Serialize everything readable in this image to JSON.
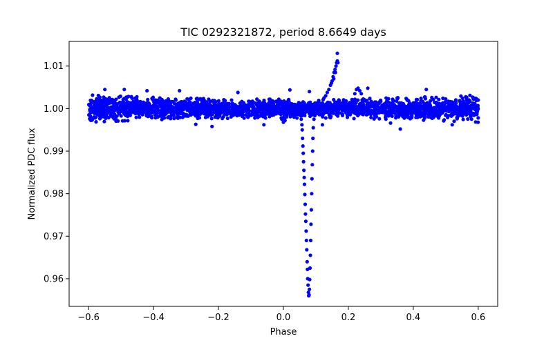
{
  "chart_data": {
    "type": "scatter",
    "title": "TIC 0292321872, period 8.6649 days",
    "xlabel": "Phase",
    "ylabel": "Normalized PDC flux",
    "xlim": [
      -0.66,
      0.66
    ],
    "ylim": [
      0.9535,
      1.0158
    ],
    "xticks": [
      -0.6,
      -0.4,
      -0.2,
      0.0,
      0.2,
      0.4,
      0.6
    ],
    "xtick_labels": [
      "−0.6",
      "−0.4",
      "−0.2",
      "0.0",
      "0.2",
      "0.4",
      "0.6"
    ],
    "yticks": [
      0.96,
      0.97,
      0.98,
      0.99,
      1.0,
      1.01
    ],
    "ytick_labels": [
      "0.96",
      "0.97",
      "0.98",
      "0.99",
      "1.00",
      "1.01"
    ],
    "grid": false,
    "marker_color": "#0000ff",
    "series": [
      {
        "name": "PDC flux",
        "baseline": {
          "x_range": [
            -0.6,
            0.6
          ],
          "center": 1.0,
          "half_width_edges": 0.0032,
          "half_width_center": 0.0022,
          "note": "dense cloud of points around flux 1.000"
        },
        "outliers": [
          [
            -0.55,
            1.0045
          ],
          [
            -0.49,
            1.0045
          ],
          [
            -0.42,
            1.0042
          ],
          [
            -0.32,
            1.0042
          ],
          [
            -0.22,
            0.9958
          ],
          [
            -0.27,
            0.9963
          ],
          [
            -0.06,
            0.9962
          ],
          [
            0.02,
            1.0044
          ],
          [
            0.12,
            0.9962
          ],
          [
            0.26,
            1.0048
          ],
          [
            0.33,
            0.9966
          ],
          [
            0.36,
            0.9952
          ],
          [
            0.44,
            1.0045
          ],
          [
            0.52,
            0.9962
          ],
          [
            -0.58,
            0.9978
          ],
          [
            0.6,
            0.9978
          ],
          [
            -0.14,
            1.0038
          ],
          [
            0.08,
            1.004
          ]
        ],
        "features": [
          {
            "name": "primary eclipse",
            "points": [
              [
                0.052,
                0.9988
              ],
              [
                0.055,
                0.9975
              ],
              [
                0.057,
                0.9962
              ],
              [
                0.058,
                0.995
              ],
              [
                0.059,
                0.993
              ],
              [
                0.06,
                0.9912
              ],
              [
                0.061,
                0.9895
              ],
              [
                0.062,
                0.9875
              ],
              [
                0.063,
                0.9855
              ],
              [
                0.064,
                0.9838
              ],
              [
                0.065,
                0.9822
              ],
              [
                0.066,
                0.9798
              ],
              [
                0.067,
                0.9775
              ],
              [
                0.068,
                0.9752
              ],
              [
                0.069,
                0.9735
              ],
              [
                0.07,
                0.9712
              ],
              [
                0.071,
                0.969
              ],
              [
                0.072,
                0.9668
              ],
              [
                0.073,
                0.964
              ],
              [
                0.074,
                0.9622
              ],
              [
                0.075,
                0.96
              ],
              [
                0.076,
                0.9585
              ],
              [
                0.077,
                0.9568
              ],
              [
                0.078,
                0.956
              ],
              [
                0.079,
                0.9562
              ],
              [
                0.08,
                0.9575
              ],
              [
                0.081,
                0.9598
              ],
              [
                0.082,
                0.9625
              ],
              [
                0.083,
                0.9655
              ],
              [
                0.084,
                0.969
              ],
              [
                0.085,
                0.9728
              ],
              [
                0.086,
                0.9762
              ],
              [
                0.087,
                0.98
              ],
              [
                0.088,
                0.9835
              ],
              [
                0.089,
                0.9868
              ],
              [
                0.09,
                0.99
              ],
              [
                0.091,
                0.993
              ],
              [
                0.092,
                0.9955
              ],
              [
                0.094,
                0.9975
              ],
              [
                0.096,
                0.999
              ]
            ]
          },
          {
            "name": "post-eclipse brightening",
            "points": [
              [
                0.125,
                1.0025
              ],
              [
                0.13,
                1.003
              ],
              [
                0.135,
                1.0038
              ],
              [
                0.14,
                1.0045
              ],
              [
                0.145,
                1.0055
              ],
              [
                0.15,
                1.0065
              ],
              [
                0.153,
                1.0075
              ],
              [
                0.156,
                1.0085
              ],
              [
                0.159,
                1.0092
              ],
              [
                0.162,
                1.01
              ],
              [
                0.164,
                1.0108
              ],
              [
                0.166,
                1.0112
              ],
              [
                0.168,
                1.0108
              ],
              [
                0.166,
                1.013
              ],
              [
                0.16,
                1.0085
              ],
              [
                0.155,
                1.007
              ],
              [
                0.148,
                1.006
              ]
            ]
          },
          {
            "name": "secondary dip",
            "points": [
              [
                0.0,
                0.9978
              ],
              [
                -0.005,
                0.9975
              ],
              [
                0.005,
                0.9972
              ],
              [
                0.0,
                0.9968
              ]
            ]
          },
          {
            "name": "secondary hump",
            "points": [
              [
                0.22,
                1.0035
              ],
              [
                0.225,
                1.0045
              ],
              [
                0.23,
                1.0048
              ],
              [
                0.235,
                1.0042
              ],
              [
                0.24,
                1.0035
              ]
            ]
          }
        ]
      }
    ]
  }
}
